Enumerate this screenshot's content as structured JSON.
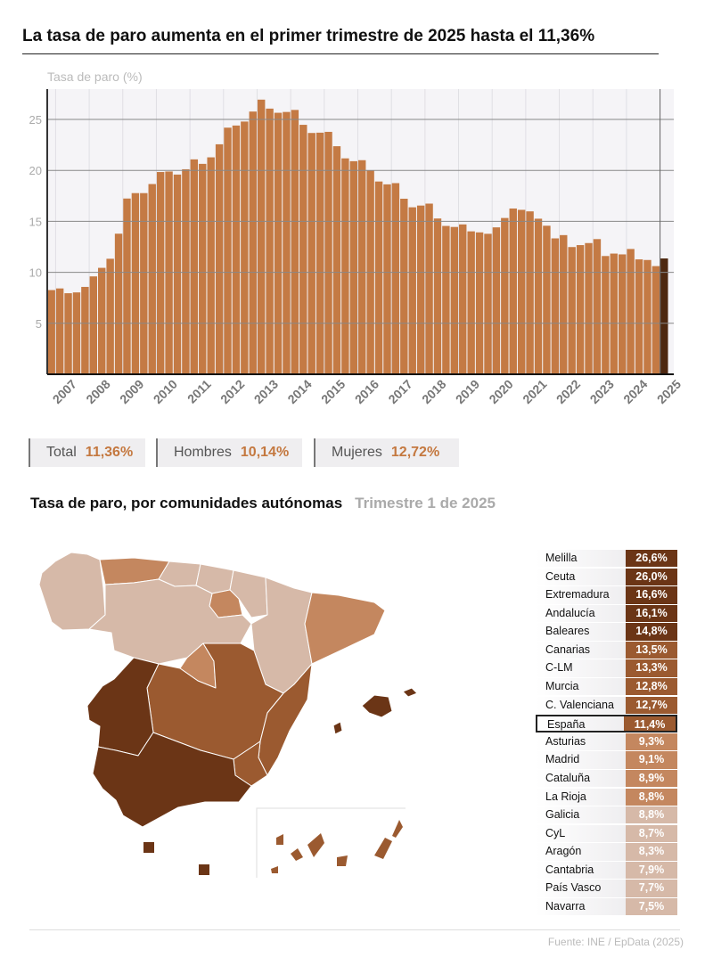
{
  "title": "La tasa de paro aumenta en el primer trimestre de 2025 hasta el 11,36%",
  "chart_data": {
    "type": "bar",
    "ylabel": "Tasa de paro (%)",
    "ylim": [
      0,
      28
    ],
    "yticks": [
      5,
      10,
      15,
      20,
      25
    ],
    "xtick_labels": [
      "2007",
      "2008",
      "2009",
      "2010",
      "2011",
      "2012",
      "2013",
      "2014",
      "2015",
      "2016",
      "2017",
      "2018",
      "2019",
      "2020",
      "2021",
      "2022",
      "2023",
      "2024",
      "2025"
    ],
    "grid": true,
    "x": [
      "2006T4",
      "2007T1",
      "2007T2",
      "2007T3",
      "2007T4",
      "2008T1",
      "2008T2",
      "2008T3",
      "2008T4",
      "2009T1",
      "2009T2",
      "2009T3",
      "2009T4",
      "2010T1",
      "2010T2",
      "2010T3",
      "2010T4",
      "2011T1",
      "2011T2",
      "2011T3",
      "2011T4",
      "2012T1",
      "2012T2",
      "2012T3",
      "2012T4",
      "2013T1",
      "2013T2",
      "2013T3",
      "2013T4",
      "2014T1",
      "2014T2",
      "2014T3",
      "2014T4",
      "2015T1",
      "2015T2",
      "2015T3",
      "2015T4",
      "2016T1",
      "2016T2",
      "2016T3",
      "2016T4",
      "2017T1",
      "2017T2",
      "2017T3",
      "2017T4",
      "2018T1",
      "2018T2",
      "2018T3",
      "2018T4",
      "2019T1",
      "2019T2",
      "2019T3",
      "2019T4",
      "2020T1",
      "2020T2",
      "2020T3",
      "2020T4",
      "2021T1",
      "2021T2",
      "2021T3",
      "2021T4",
      "2022T1",
      "2022T2",
      "2022T3",
      "2022T4",
      "2023T1",
      "2023T2",
      "2023T3",
      "2023T4",
      "2024T1",
      "2024T2",
      "2024T3",
      "2024T4",
      "2025T1"
    ],
    "values": [
      8.26,
      8.42,
      7.95,
      8.03,
      8.57,
      9.6,
      10.44,
      11.33,
      13.79,
      17.24,
      17.77,
      17.77,
      18.66,
      19.84,
      19.89,
      19.59,
      20.11,
      21.08,
      20.64,
      21.28,
      22.56,
      24.19,
      24.4,
      24.79,
      25.77,
      26.94,
      26.06,
      25.65,
      25.73,
      25.93,
      24.47,
      23.67,
      23.7,
      23.78,
      22.37,
      21.18,
      20.9,
      21.0,
      20.0,
      18.91,
      18.63,
      18.75,
      17.22,
      16.38,
      16.55,
      16.74,
      15.28,
      14.55,
      14.45,
      14.7,
      14.02,
      13.92,
      13.78,
      14.41,
      15.33,
      16.26,
      16.13,
      15.98,
      15.26,
      14.57,
      13.33,
      13.65,
      12.48,
      12.67,
      12.87,
      13.26,
      11.6,
      11.84,
      11.76,
      12.29,
      11.27,
      11.21,
      10.61,
      11.36
    ],
    "colors": {
      "bar": "#c47a44",
      "highlight": "#4e2810"
    }
  },
  "stats": [
    {
      "label": "Total",
      "value": "11,36%"
    },
    {
      "label": "Hombres",
      "value": "10,14%"
    },
    {
      "label": "Mujeres",
      "value": "12,72%"
    }
  ],
  "regions_title": "Tasa de paro, por comunidades autónomas",
  "regions_period": "Trimestre 1 de 2025",
  "color_scale": {
    "c1": "#6b3516",
    "c2": "#9b5a30",
    "c3": "#c4875f",
    "c4": "#d6b9a8"
  },
  "regions": [
    {
      "name": "Melilla",
      "value": "26,6%",
      "cls": "c1"
    },
    {
      "name": "Ceuta",
      "value": "26,0%",
      "cls": "c1"
    },
    {
      "name": "Extremadura",
      "value": "16,6%",
      "cls": "c1"
    },
    {
      "name": "Andalucía",
      "value": "16,1%",
      "cls": "c1"
    },
    {
      "name": "Baleares",
      "value": "14,8%",
      "cls": "c1"
    },
    {
      "name": "Canarias",
      "value": "13,5%",
      "cls": "c2"
    },
    {
      "name": "C-LM",
      "value": "13,3%",
      "cls": "c2"
    },
    {
      "name": "Murcia",
      "value": "12,8%",
      "cls": "c2"
    },
    {
      "name": "C. Valenciana",
      "value": "12,7%",
      "cls": "c2"
    },
    {
      "name": "España",
      "value": "11,4%",
      "cls": "c2"
    },
    {
      "name": "Asturias",
      "value": "9,3%",
      "cls": "c3"
    },
    {
      "name": "Madrid",
      "value": "9,1%",
      "cls": "c3"
    },
    {
      "name": "Cataluña",
      "value": "8,9%",
      "cls": "c3"
    },
    {
      "name": "La Rioja",
      "value": "8,8%",
      "cls": "c3"
    },
    {
      "name": "Galicia",
      "value": "8,8%",
      "cls": "c4"
    },
    {
      "name": "CyL",
      "value": "8,7%",
      "cls": "c4"
    },
    {
      "name": "Aragón",
      "value": "8,3%",
      "cls": "c4"
    },
    {
      "name": "Cantabria",
      "value": "7,9%",
      "cls": "c4"
    },
    {
      "name": "País Vasco",
      "value": "7,7%",
      "cls": "c4"
    },
    {
      "name": "Navarra",
      "value": "7,5%",
      "cls": "c4"
    }
  ],
  "source": "Fuente: INE / EpData (2025)"
}
